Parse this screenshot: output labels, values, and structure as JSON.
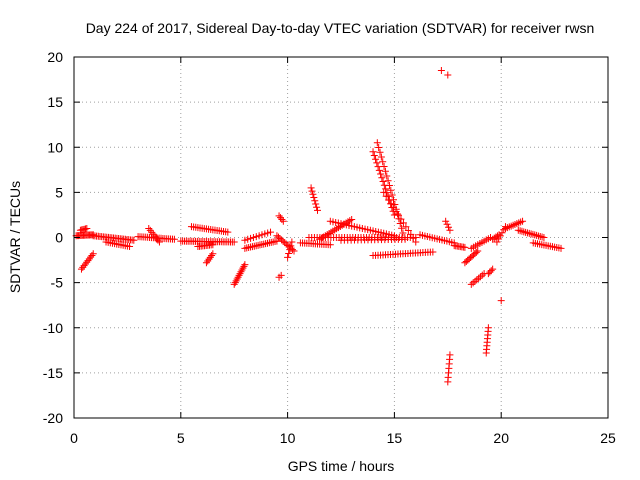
{
  "chart_data": {
    "type": "scatter",
    "title": "Day 224 of 2017, Sidereal Day-to-day VTEC variation (SDTVAR) for receiver rwsn",
    "xlabel": "GPS time / hours",
    "ylabel": "SDTVAR / TECUs",
    "xlim": [
      0,
      25
    ],
    "ylim": [
      -20,
      20
    ],
    "xticks": [
      0,
      5,
      10,
      15,
      20,
      25
    ],
    "yticks": [
      -20,
      -15,
      -10,
      -5,
      0,
      5,
      10,
      15,
      20
    ],
    "grid": true,
    "marker": "plus",
    "color": "#ff0000",
    "series": [
      {
        "name": "SDTVAR",
        "segments": [
          {
            "x": [
              0.1,
              0.9
            ],
            "y": [
              0.2,
              0.3
            ],
            "n": 15
          },
          {
            "x": [
              0.3,
              0.6
            ],
            "y": [
              0.8,
              1.0
            ],
            "n": 6
          },
          {
            "x": [
              0.35,
              0.9
            ],
            "y": [
              -3.5,
              -1.8
            ],
            "n": 10
          },
          {
            "x": [
              0.9,
              2.8
            ],
            "y": [
              0.2,
              -0.3
            ],
            "n": 25
          },
          {
            "x": [
              1.5,
              2.6
            ],
            "y": [
              -0.5,
              -1.0
            ],
            "n": 12
          },
          {
            "x": [
              3.0,
              4.7
            ],
            "y": [
              0.1,
              -0.2
            ],
            "n": 20
          },
          {
            "x": [
              3.5,
              4.0
            ],
            "y": [
              1.0,
              -0.5
            ],
            "n": 8
          },
          {
            "x": [
              5.0,
              7.5
            ],
            "y": [
              -0.4,
              -0.5
            ],
            "n": 30
          },
          {
            "x": [
              5.5,
              7.2
            ],
            "y": [
              1.2,
              0.6
            ],
            "n": 18
          },
          {
            "x": [
              5.8,
              6.5
            ],
            "y": [
              -1.0,
              -0.8
            ],
            "n": 10
          },
          {
            "x": [
              6.2,
              6.5
            ],
            "y": [
              -2.8,
              -1.8
            ],
            "n": 6
          },
          {
            "x": [
              7.5,
              8.0
            ],
            "y": [
              -5.2,
              -3.0
            ],
            "n": 12
          },
          {
            "x": [
              8.0,
              9.5
            ],
            "y": [
              -1.2,
              -0.4
            ],
            "n": 18
          },
          {
            "x": [
              8.0,
              9.2
            ],
            "y": [
              -0.3,
              0.6
            ],
            "n": 10
          },
          {
            "x": [
              9.5,
              10.3
            ],
            "y": [
              0.2,
              -1.5
            ],
            "n": 12
          },
          {
            "x": [
              9.6,
              9.8
            ],
            "y": [
              2.4,
              1.8
            ],
            "n": 4
          },
          {
            "x": [
              9.6,
              9.7
            ],
            "y": [
              -4.4,
              -4.2
            ],
            "n": 2
          },
          {
            "x": [
              10.0,
              10.2
            ],
            "y": [
              -2.2,
              -0.5
            ],
            "n": 5
          },
          {
            "x": [
              10.6,
              12.0
            ],
            "y": [
              -0.6,
              -0.8
            ],
            "n": 15
          },
          {
            "x": [
              11.1,
              11.4
            ],
            "y": [
              5.5,
              3.0
            ],
            "n": 8
          },
          {
            "x": [
              11.5,
              13.0
            ],
            "y": [
              -0.2,
              2.0
            ],
            "n": 18
          },
          {
            "x": [
              12.0,
              15.0
            ],
            "y": [
              1.8,
              0.2
            ],
            "n": 25
          },
          {
            "x": [
              11.0,
              16.0
            ],
            "y": [
              0.0,
              0.0
            ],
            "n": 40
          },
          {
            "x": [
              12.5,
              15.5
            ],
            "y": [
              -0.3,
              -0.2
            ],
            "n": 20
          },
          {
            "x": [
              14.0,
              15.0
            ],
            "y": [
              9.5,
              2.5
            ],
            "n": 18
          },
          {
            "x": [
              14.2,
              15.4
            ],
            "y": [
              10.5,
              0.5
            ],
            "n": 20
          },
          {
            "x": [
              14.5,
              16.0
            ],
            "y": [
              5.0,
              -0.5
            ],
            "n": 14
          },
          {
            "x": [
              14.0,
              16.8
            ],
            "y": [
              -2.0,
              -1.6
            ],
            "n": 25
          },
          {
            "x": [
              16.2,
              17.8
            ],
            "y": [
              0.3,
              -0.6
            ],
            "n": 15
          },
          {
            "x": [
              17.2,
              17.5
            ],
            "y": [
              18.5,
              18.0
            ],
            "n": 2
          },
          {
            "x": [
              17.4,
              17.6
            ],
            "y": [
              1.8,
              0.8
            ],
            "n": 4
          },
          {
            "x": [
              17.5,
              17.6
            ],
            "y": [
              -16.0,
              -13.0
            ],
            "n": 7
          },
          {
            "x": [
              17.8,
              18.3
            ],
            "y": [
              -0.9,
              -1.1
            ],
            "n": 8
          },
          {
            "x": [
              18.3,
              18.9
            ],
            "y": [
              -2.8,
              -1.5
            ],
            "n": 10
          },
          {
            "x": [
              18.6,
              19.5
            ],
            "y": [
              -1.2,
              0.0
            ],
            "n": 10
          },
          {
            "x": [
              18.6,
              19.2
            ],
            "y": [
              -5.2,
              -4.0
            ],
            "n": 8
          },
          {
            "x": [
              19.3,
              19.4
            ],
            "y": [
              -12.8,
              -10.0
            ],
            "n": 8
          },
          {
            "x": [
              19.4,
              19.6
            ],
            "y": [
              -4.0,
              -3.5
            ],
            "n": 4
          },
          {
            "x": [
              19.6,
              19.9
            ],
            "y": [
              -0.2,
              0.3
            ],
            "n": 5
          },
          {
            "x": [
              19.8,
              20.2
            ],
            "y": [
              -0.5,
              1.2
            ],
            "n": 6
          },
          {
            "x": [
              20.0,
              20.1
            ],
            "y": [
              -7.0,
              -7.0
            ],
            "n": 1
          },
          {
            "x": [
              20.2,
              21.0
            ],
            "y": [
              1.0,
              1.8
            ],
            "n": 10
          },
          {
            "x": [
              20.8,
              22.0
            ],
            "y": [
              0.8,
              0.0
            ],
            "n": 15
          },
          {
            "x": [
              21.5,
              22.8
            ],
            "y": [
              -0.6,
              -1.2
            ],
            "n": 14
          }
        ]
      }
    ]
  }
}
